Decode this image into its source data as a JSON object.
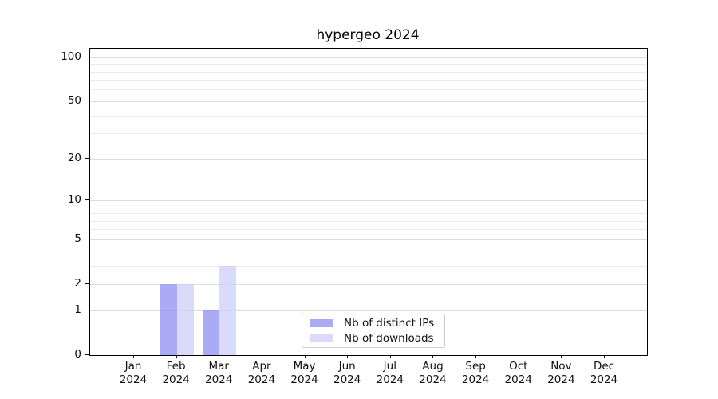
{
  "chart_data": {
    "type": "bar",
    "title": "hypergeo 2024",
    "categories": [
      "Jan 2024",
      "Feb 2024",
      "Mar 2024",
      "Apr 2024",
      "May 2024",
      "Jun 2024",
      "Jul 2024",
      "Aug 2024",
      "Sep 2024",
      "Oct 2024",
      "Nov 2024",
      "Dec 2024"
    ],
    "series": [
      {
        "name": "Nb of distinct IPs",
        "color": "rgba(150,150,243,0.8)",
        "values": [
          0,
          2,
          1,
          0,
          0,
          0,
          0,
          0,
          0,
          0,
          0,
          0
        ]
      },
      {
        "name": "Nb of downloads",
        "color": "rgba(208,208,248,0.78)",
        "values": [
          0,
          2,
          3,
          0,
          0,
          0,
          0,
          0,
          0,
          0,
          0,
          0
        ]
      }
    ],
    "xlabel": "",
    "ylabel": "",
    "yscale": "log1p",
    "ylim": [
      0,
      115
    ],
    "ytick_values": [
      0,
      1,
      2,
      5,
      10,
      20,
      50,
      100
    ],
    "ytick_labels": [
      "0",
      "1",
      "2",
      "5",
      "10",
      "20",
      "50",
      "100"
    ],
    "gridline_values": [
      1,
      2,
      3,
      4,
      5,
      6,
      7,
      8,
      9,
      10,
      20,
      30,
      40,
      50,
      60,
      70,
      80,
      90,
      100
    ],
    "grid": "horizontal",
    "legend_position": "lower center",
    "axis_color": "#000000",
    "gridline_color": "#ececec"
  }
}
